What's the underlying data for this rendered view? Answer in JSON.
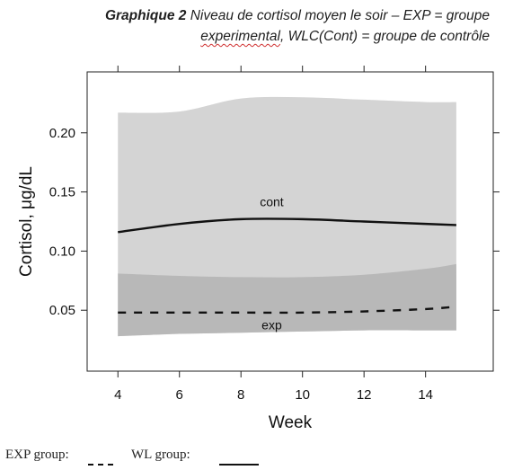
{
  "caption": {
    "label": "Graphique 2",
    "text_line1": "Niveau de cortisol moyen le soir – EXP = groupe",
    "text_line2_a": "experimental",
    "text_line2_b": ", WLC(Cont) = groupe de contrôle"
  },
  "chart_data": {
    "type": "line",
    "title": "",
    "xlabel": "Week",
    "ylabel": "Cortisol, μg/dL",
    "xlim": [
      3,
      16.2
    ],
    "ylim": [
      -0.0015,
      0.2515
    ],
    "xticks": [
      4,
      6,
      8,
      10,
      12,
      14
    ],
    "yticks": [
      0.05,
      0.1,
      0.15,
      0.2
    ],
    "ytick_labels": [
      "0.05",
      "0.10",
      "0.15",
      "0.20"
    ],
    "grid": false,
    "series": [
      {
        "name": "cont",
        "style": "solid",
        "color": "#111111",
        "x": [
          4,
          6,
          8,
          10,
          12,
          14,
          15
        ],
        "y": [
          0.116,
          0.123,
          0.127,
          0.127,
          0.125,
          0.123,
          0.122
        ],
        "band_upper": [
          0.217,
          0.218,
          0.229,
          0.23,
          0.228,
          0.226,
          0.226
        ],
        "band_lower": [
          0.028,
          0.03,
          0.031,
          0.032,
          0.033,
          0.033,
          0.033
        ],
        "band_color": "#d4d4d4"
      },
      {
        "name": "exp",
        "style": "dashed",
        "color": "#111111",
        "x": [
          4,
          6,
          8,
          10,
          12,
          14,
          15
        ],
        "y": [
          0.048,
          0.048,
          0.048,
          0.048,
          0.049,
          0.051,
          0.053
        ],
        "band_upper": [
          0.081,
          0.079,
          0.078,
          0.078,
          0.08,
          0.085,
          0.089
        ],
        "band_lower": [
          0.028,
          0.03,
          0.031,
          0.032,
          0.033,
          0.033,
          0.033
        ],
        "band_color": "#b8b8b8"
      }
    ],
    "annotations": [
      {
        "text": "cont",
        "x": 9,
        "y": 0.138
      },
      {
        "text": "exp",
        "x": 9,
        "y": 0.034
      }
    ]
  },
  "legend": {
    "exp_label": "EXP group:",
    "wl_label": "WL group:"
  }
}
